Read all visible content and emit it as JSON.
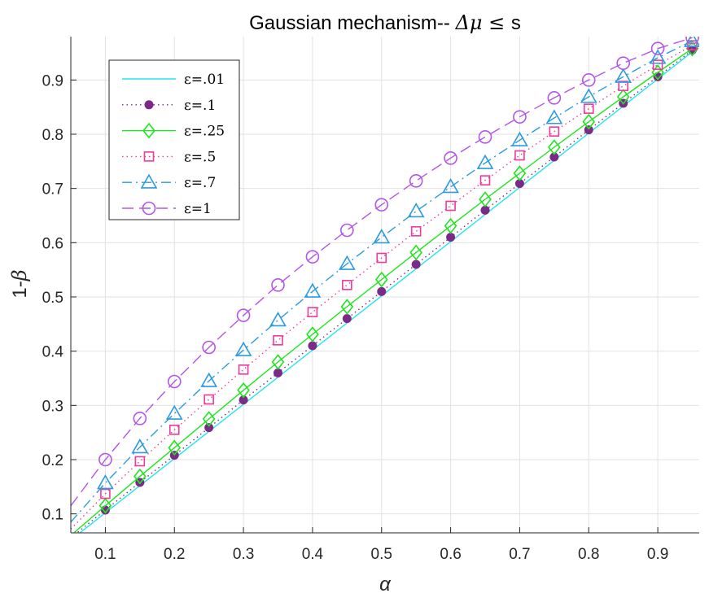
{
  "chart_data": {
    "type": "line",
    "title_text": "Gaussian mechanism-- ",
    "title_math": "Δμ ≤ ",
    "title_suffix": "s",
    "xlabel": "α",
    "ylabel_prefix": "1-",
    "ylabel_math": "β",
    "xlim": [
      0.05,
      0.96
    ],
    "ylim": [
      0.065,
      0.98
    ],
    "xticks": [
      0.1,
      0.2,
      0.3,
      0.4,
      0.5,
      0.6,
      0.7,
      0.8,
      0.9
    ],
    "xtick_labels": [
      "0.1",
      "0.2",
      "0.3",
      "0.4",
      "0.5",
      "0.6",
      "0.7",
      "0.8",
      "0.9"
    ],
    "yticks": [
      0.1,
      0.2,
      0.3,
      0.4,
      0.5,
      0.6,
      0.7,
      0.8,
      0.9
    ],
    "ytick_labels": [
      "0.1",
      "0.2",
      "0.3",
      "0.4",
      "0.5",
      "0.6",
      "0.7",
      "0.8",
      "0.9"
    ],
    "grid": true,
    "legend_position": "top-left",
    "marker_x": [
      0.1,
      0.15,
      0.2,
      0.25,
      0.3,
      0.35,
      0.4,
      0.45,
      0.5,
      0.55,
      0.6,
      0.65,
      0.7,
      0.75,
      0.8,
      0.85,
      0.9,
      0.95
    ],
    "series": [
      {
        "name": "ε=.01",
        "color": "#22e6f0",
        "dash": "solid",
        "marker": "none",
        "x": [
          0.05,
          0.95
        ],
        "y": [
          0.052,
          0.952
        ]
      },
      {
        "name": "ε=.1",
        "color": "#7b2a88",
        "dash": "dotted",
        "marker": "dot",
        "x": [
          0.05,
          0.1,
          0.15,
          0.2,
          0.25,
          0.3,
          0.35,
          0.4,
          0.45,
          0.5,
          0.55,
          0.6,
          0.65,
          0.7,
          0.75,
          0.8,
          0.85,
          0.9,
          0.95
        ],
        "y": [
          0.056,
          0.107,
          0.158,
          0.208,
          0.259,
          0.31,
          0.36,
          0.41,
          0.46,
          0.51,
          0.56,
          0.61,
          0.66,
          0.709,
          0.758,
          0.808,
          0.857,
          0.906,
          0.955
        ]
      },
      {
        "name": "ε=.25",
        "color": "#1ee61e",
        "dash": "solid",
        "marker": "diamond",
        "x": [
          0.05,
          0.1,
          0.15,
          0.2,
          0.25,
          0.3,
          0.35,
          0.4,
          0.45,
          0.5,
          0.55,
          0.6,
          0.65,
          0.7,
          0.75,
          0.8,
          0.85,
          0.9,
          0.95
        ],
        "y": [
          0.06,
          0.115,
          0.169,
          0.222,
          0.275,
          0.328,
          0.38,
          0.431,
          0.482,
          0.532,
          0.582,
          0.631,
          0.68,
          0.728,
          0.776,
          0.823,
          0.869,
          0.914,
          0.958
        ]
      },
      {
        "name": "ε=.5",
        "color": "#ee3a9c",
        "dash": "dotted",
        "marker": "square",
        "x": [
          0.05,
          0.1,
          0.15,
          0.2,
          0.25,
          0.3,
          0.35,
          0.4,
          0.45,
          0.5,
          0.55,
          0.6,
          0.65,
          0.7,
          0.75,
          0.8,
          0.85,
          0.9,
          0.95
        ],
        "y": [
          0.072,
          0.137,
          0.197,
          0.255,
          0.311,
          0.366,
          0.42,
          0.472,
          0.522,
          0.572,
          0.621,
          0.668,
          0.715,
          0.761,
          0.805,
          0.847,
          0.889,
          0.928,
          0.964
        ]
      },
      {
        "name": "ε=.7",
        "color": "#2c9be0",
        "dash": "dashdot",
        "marker": "triangle",
        "x": [
          0.05,
          0.1,
          0.15,
          0.2,
          0.25,
          0.3,
          0.35,
          0.4,
          0.45,
          0.5,
          0.55,
          0.6,
          0.65,
          0.7,
          0.75,
          0.8,
          0.85,
          0.9,
          0.95
        ],
        "y": [
          0.085,
          0.157,
          0.223,
          0.285,
          0.345,
          0.402,
          0.457,
          0.51,
          0.561,
          0.61,
          0.658,
          0.703,
          0.747,
          0.789,
          0.83,
          0.869,
          0.906,
          0.941,
          0.972
        ]
      },
      {
        "name": "ε=1",
        "color": "#b455ea",
        "dash": "dashed",
        "marker": "circle",
        "x": [
          0.05,
          0.1,
          0.15,
          0.2,
          0.25,
          0.3,
          0.35,
          0.4,
          0.45,
          0.5,
          0.55,
          0.6,
          0.65,
          0.7,
          0.75,
          0.8,
          0.85,
          0.9,
          0.95
        ],
        "y": [
          0.115,
          0.2,
          0.276,
          0.344,
          0.407,
          0.466,
          0.522,
          0.574,
          0.623,
          0.67,
          0.714,
          0.756,
          0.795,
          0.832,
          0.867,
          0.9,
          0.931,
          0.958,
          0.978
        ]
      }
    ]
  }
}
